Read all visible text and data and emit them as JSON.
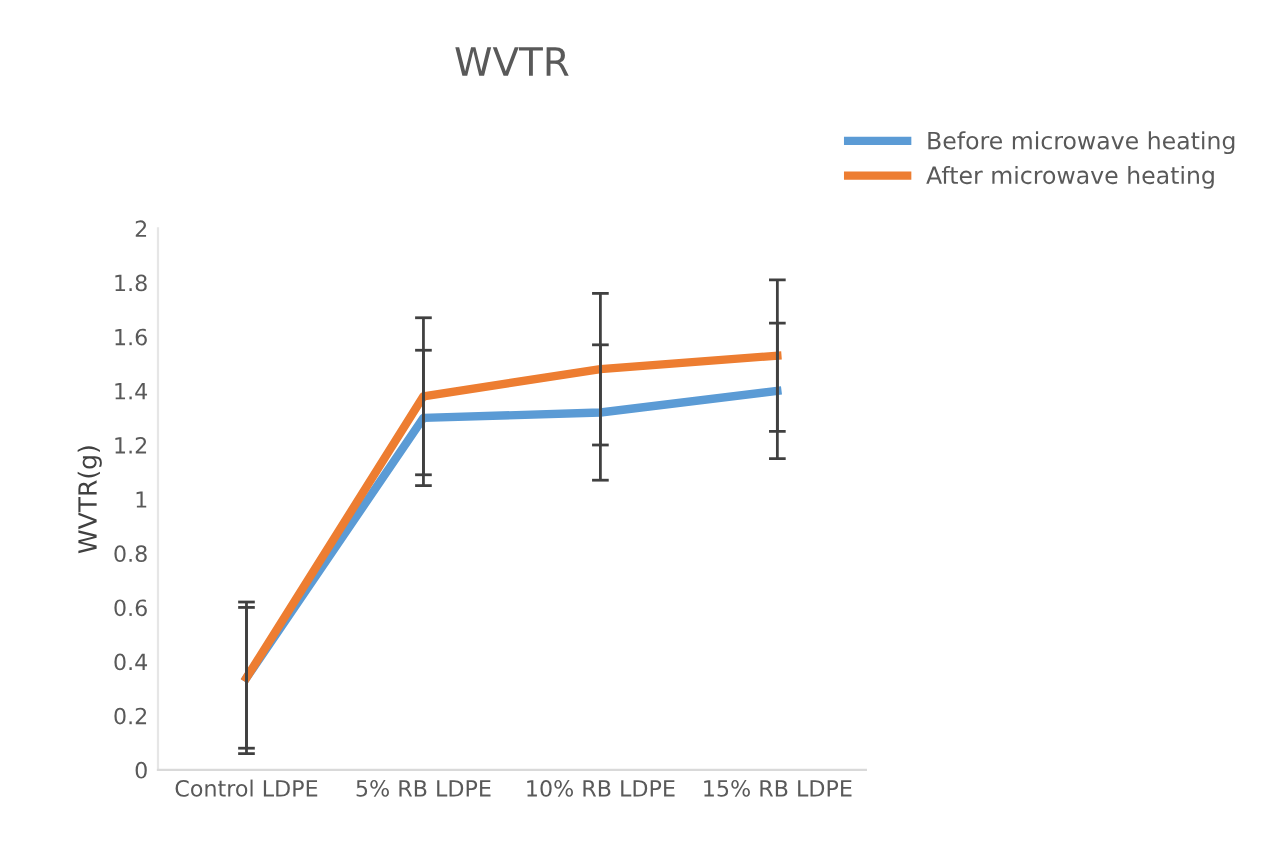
{
  "chart_data": {
    "type": "line",
    "title": "WVTR",
    "ylabel": "WVTR(g)",
    "categories": [
      "Control LDPE",
      "5% RB LDPE",
      "10% RB LDPE",
      "15% RB LDPE"
    ],
    "series": [
      {
        "name": "Before microwave heating",
        "color": "#5b9bd5",
        "values": [
          0.34,
          1.3,
          1.32,
          1.4
        ],
        "errors": [
          0.26,
          0.25,
          0.25,
          0.25
        ]
      },
      {
        "name": "After microwave heating",
        "color": "#ed7d31",
        "values": [
          0.34,
          1.38,
          1.48,
          1.53
        ],
        "errors": [
          0.28,
          0.29,
          0.28,
          0.28
        ]
      }
    ],
    "ylim": [
      0,
      2
    ],
    "yticks": [
      0,
      0.2,
      0.4,
      0.6,
      0.8,
      1,
      1.2,
      1.4,
      1.6,
      1.8,
      2
    ],
    "grid": false,
    "legend": "top right",
    "marker": "none",
    "line_style": "solid"
  }
}
